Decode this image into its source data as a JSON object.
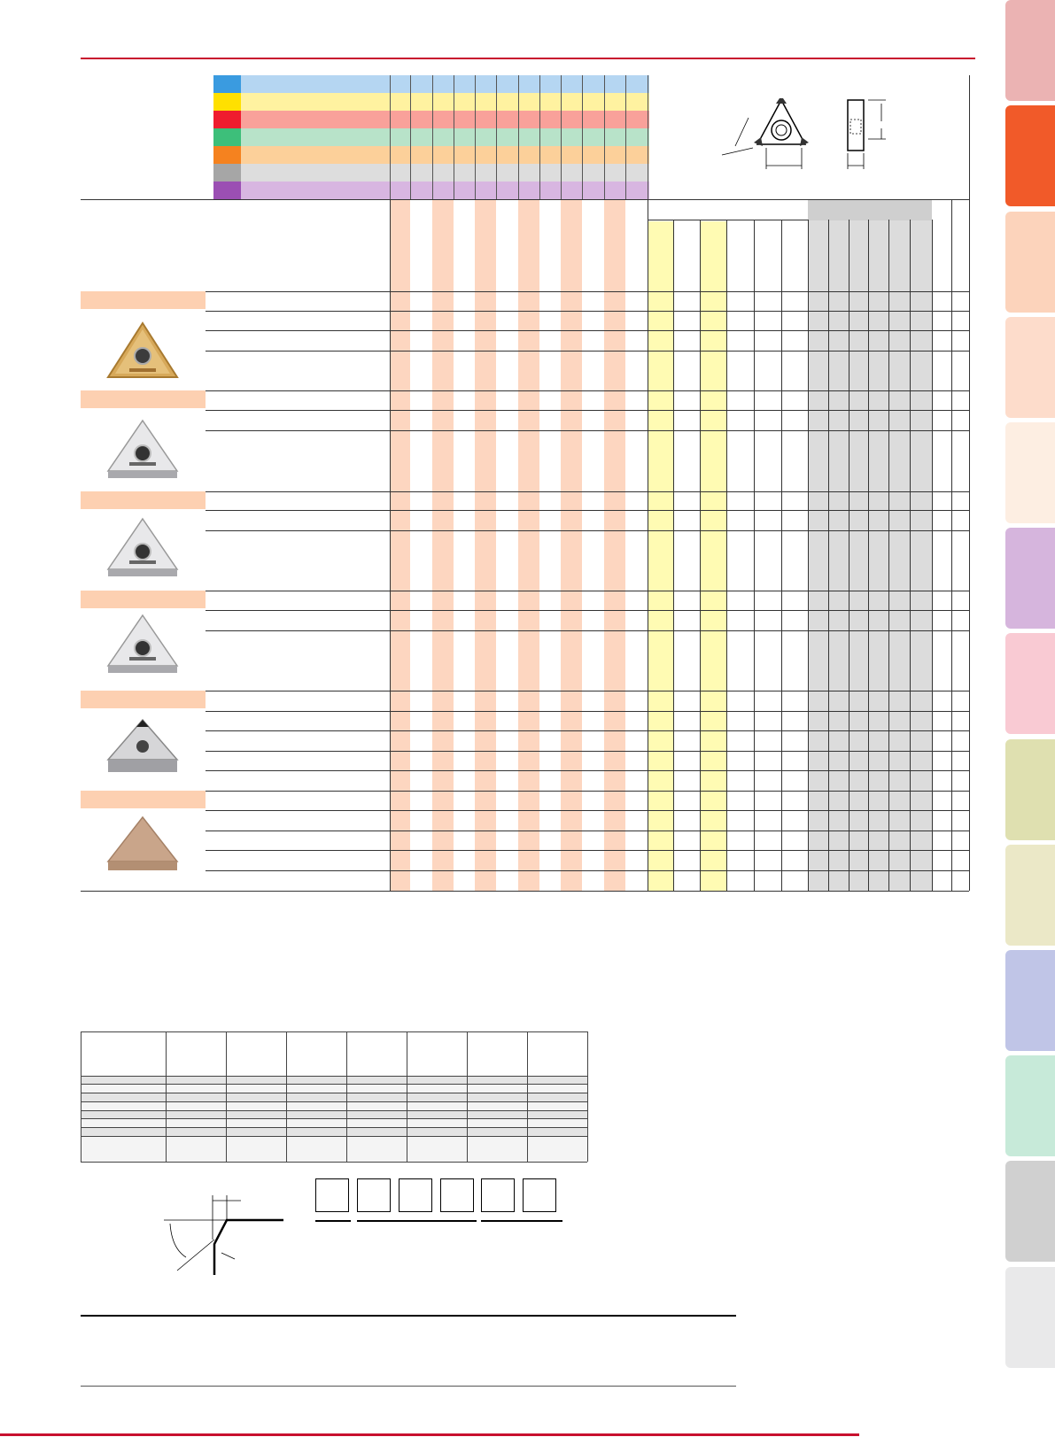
{
  "colors": {
    "accent_red": "#c8102e",
    "legend": [
      "#3a9be0",
      "#ffe000",
      "#ef1c2e",
      "#3dbf7a",
      "#f5821f",
      "#a6a6a6",
      "#9b4fb3"
    ],
    "legend_bands": [
      "#b5d6f2",
      "#fff2a0",
      "#f9a19a",
      "#b8e3c9",
      "#fcd09a",
      "#dddddd",
      "#d8b6e1"
    ],
    "cutting_columns": "#fdd6c0",
    "grade_columns": "#fffbb3",
    "stock_columns": "#dcdcdc",
    "category_bar": "#fdd0b1",
    "side_tabs": [
      "#ebb3b3",
      "#f15a29",
      "#fcd3bb",
      "#fddccb",
      "#fdeee2",
      "#d6b5dd",
      "#f9cad3",
      "#dfe0b0",
      "#ebe8c7",
      "#c0c5e7",
      "#c7ead9",
      "#d0d0d0",
      "#e9e9ea"
    ]
  },
  "insert_images": [
    {
      "name": "gold-coated-triangle-insert",
      "icon": "triangle-insert-gold"
    },
    {
      "name": "silver-triangle-insert-1",
      "icon": "triangle-insert-silver"
    },
    {
      "name": "silver-triangle-insert-2",
      "icon": "triangle-insert-silver"
    },
    {
      "name": "silver-triangle-insert-3",
      "icon": "triangle-insert-silver"
    },
    {
      "name": "cbn-tipped-triangle-insert",
      "icon": "triangle-insert-tipped"
    },
    {
      "name": "solid-ceramic-triangle-insert",
      "icon": "triangle-insert-ceramic"
    }
  ],
  "diagrams": {
    "top_right": "triangle-insert-dimension-diagram",
    "corner": "chamfer-angle-diagram",
    "designation_slots": 6
  }
}
